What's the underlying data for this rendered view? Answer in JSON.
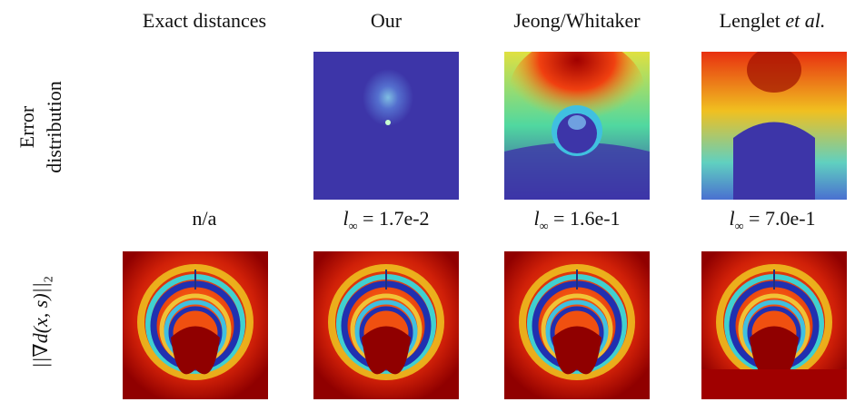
{
  "columns": [
    {
      "name": "Exact distances"
    },
    {
      "name": "Our"
    },
    {
      "name": "Jeong/Whitaker"
    },
    {
      "name": "Lenglet",
      "suffix": "et al."
    }
  ],
  "row_labels": {
    "error": [
      "Error",
      "distribution"
    ],
    "gradient": {
      "text": "||∇d(x, s)||",
      "sub": "2"
    }
  },
  "metrics": [
    {
      "text": "n/a"
    },
    {
      "var": "l",
      "sub": "∞",
      "value": "= 1.7e-2"
    },
    {
      "var": "l",
      "sub": "∞",
      "value": "= 1.6e-1"
    },
    {
      "var": "l",
      "sub": "∞",
      "value": "= 7.0e-1"
    }
  ]
}
